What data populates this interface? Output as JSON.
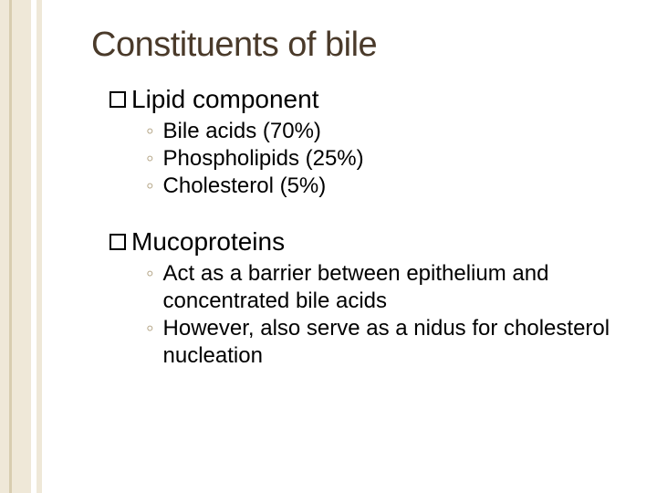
{
  "background_color": "#ffffff",
  "left_band_color": "#efe8d8",
  "left_band_stripe_color": "#d8cdb0",
  "title": {
    "text": "Constituents of bile",
    "color": "#4a3a2a",
    "fontsize": 38
  },
  "square_bullet": {
    "size": 18,
    "border_color": "#000000"
  },
  "sub_bullet": {
    "glyph": "◦",
    "color": "#b0a080"
  },
  "sections": [
    {
      "header": "Lipid component",
      "items": [
        "Bile acids (70%)",
        "Phospholipids (25%)",
        "Cholesterol (5%)"
      ]
    },
    {
      "header": "Mucoproteins",
      "items": [
        "Act as a barrier between epithelium and concentrated bile acids",
        "However,  also serve as a nidus for cholesterol nucleation"
      ]
    }
  ]
}
